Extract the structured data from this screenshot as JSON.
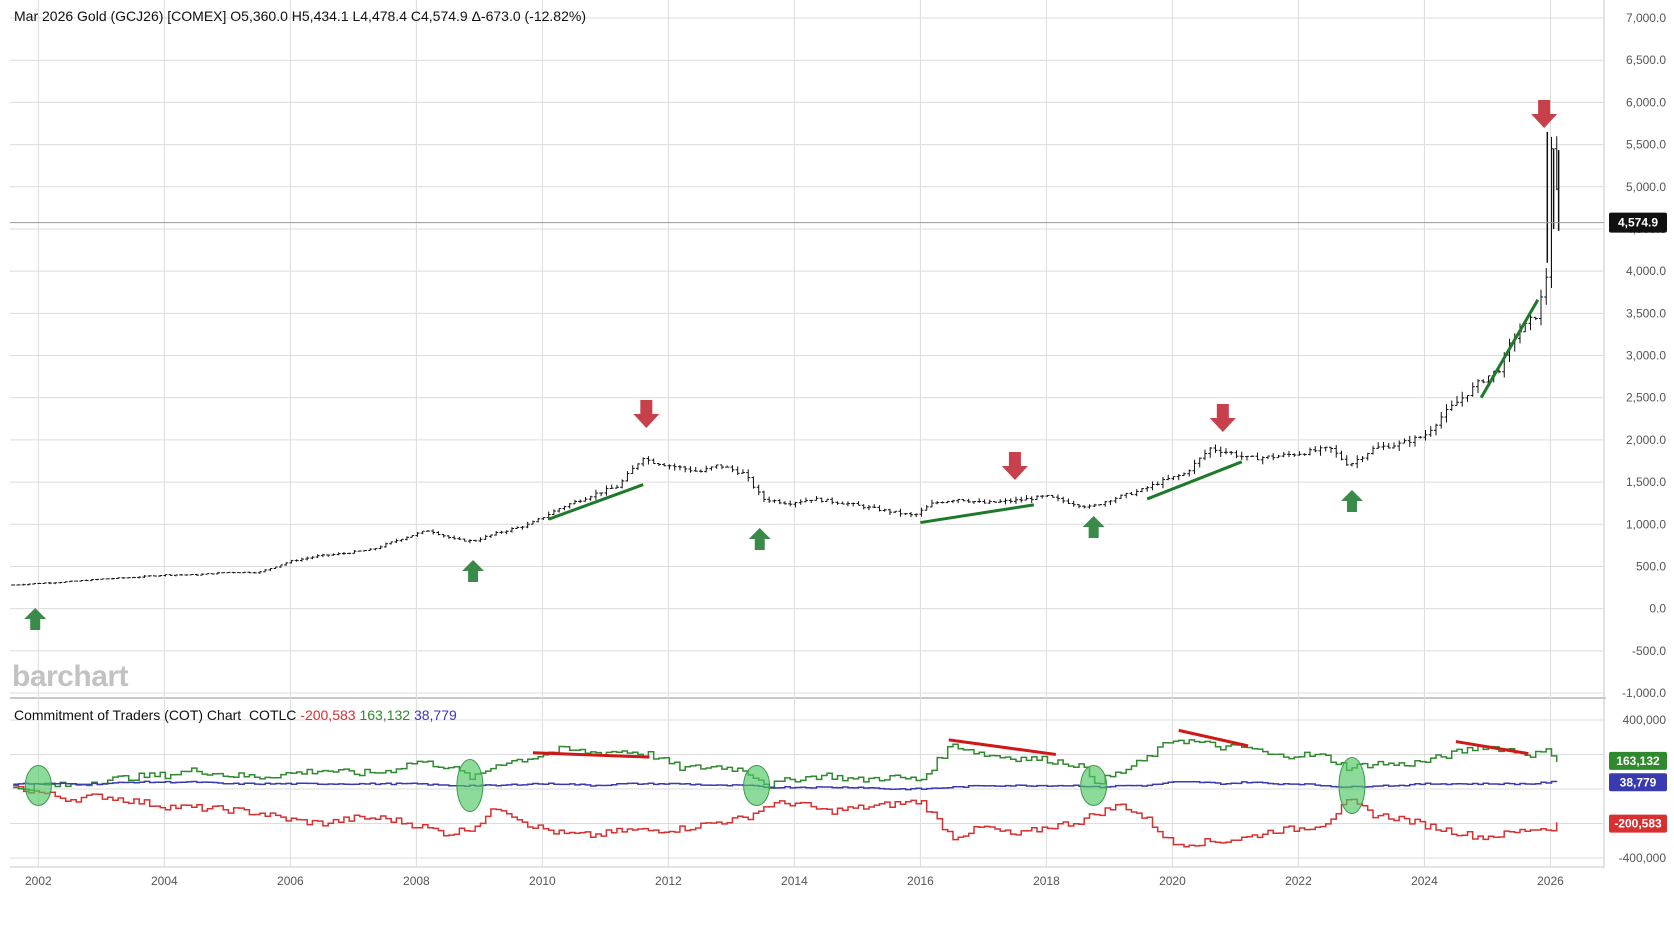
{
  "header": {
    "symbol_line": "Mar 2026 Gold (GCJ26) [COMEX] O5,360.0 H5,434.1 L4,478.4 C4,574.9 Δ-673.0 (-12.82%)"
  },
  "cot_header": {
    "title": "Commitment of Traders (COT) Chart",
    "code": "COTLC",
    "commercials": "-200,583",
    "large_specs": "163,132",
    "small_specs": "38,779"
  },
  "logo": {
    "text": "barchart"
  },
  "colors": {
    "price": "#111111",
    "commercials": "#d83030",
    "large_specs": "#2f8a2f",
    "small_specs": "#3a3ab0",
    "down_arrow": "#c8404a",
    "up_arrow": "#3a8a4a",
    "trend_green": "#1e7a2a",
    "trend_red": "#d01818",
    "grid": "#dcdcdc"
  },
  "chart_data": [
    {
      "type": "bar",
      "panel": "price",
      "title": "Mar 2026 Gold (GCJ26) [COMEX]",
      "ohlc_last": {
        "open": "5,360.0",
        "high": "5,434.1",
        "low": "4,478.4",
        "close": "4,574.9",
        "change": "-673.0",
        "change_pct": "-12.82%"
      },
      "last_price_label": "4,574.9",
      "ylim": [
        -1000,
        7000
      ],
      "y_ticks": [
        "7,000.0",
        "6,500.0",
        "6,000.0",
        "5,500.0",
        "5,000.0",
        "4,500.0",
        "4,000.0",
        "3,500.0",
        "3,000.0",
        "2,500.0",
        "2,000.0",
        "1,500.0",
        "1,000.0",
        "500.0",
        "0.0",
        "-500.0",
        "-1,000.0"
      ],
      "x_ticks": [
        "2002",
        "2004",
        "2006",
        "2008",
        "2010",
        "2012",
        "2014",
        "2016",
        "2018",
        "2020",
        "2022",
        "2024",
        "2026"
      ],
      "x": [
        2001.6,
        2002.0,
        2002.5,
        2003.0,
        2003.5,
        2004.0,
        2004.5,
        2005.0,
        2005.5,
        2006.0,
        2006.4,
        2006.8,
        2007.3,
        2007.8,
        2008.2,
        2008.6,
        2008.9,
        2009.3,
        2009.8,
        2010.3,
        2010.8,
        2011.2,
        2011.6,
        2011.7,
        2012.0,
        2012.5,
        2012.8,
        2013.2,
        2013.5,
        2013.9,
        2014.3,
        2014.8,
        2015.3,
        2015.9,
        2016.2,
        2016.6,
        2017.0,
        2017.5,
        2018.0,
        2018.4,
        2018.7,
        2019.0,
        2019.5,
        2019.8,
        2020.2,
        2020.6,
        2020.9,
        2021.2,
        2021.6,
        2022.1,
        2022.5,
        2022.8,
        2023.2,
        2023.6,
        2024.0,
        2024.3,
        2024.6,
        2024.9,
        2025.2,
        2025.4,
        2025.6,
        2025.8,
        2025.95,
        2026.0,
        2026.15
      ],
      "values": [
        280,
        300,
        320,
        350,
        370,
        400,
        400,
        430,
        430,
        560,
        620,
        650,
        700,
        840,
        930,
        820,
        800,
        900,
        1000,
        1200,
        1350,
        1450,
        1800,
        1750,
        1700,
        1620,
        1700,
        1600,
        1300,
        1250,
        1300,
        1250,
        1180,
        1100,
        1250,
        1300,
        1250,
        1280,
        1330,
        1250,
        1200,
        1290,
        1400,
        1500,
        1600,
        1900,
        1850,
        1780,
        1800,
        1850,
        1900,
        1700,
        1900,
        1950,
        2050,
        2300,
        2500,
        2700,
        2850,
        3200,
        3350,
        3500,
        4000,
        5600,
        4574.9
      ],
      "annotations": {
        "down_arrows_x": [
          2011.65,
          2017.5,
          2020.8,
          2025.9
        ],
        "up_arrows_x": [
          2001.95,
          2008.9,
          2013.45,
          2018.75,
          2022.85
        ],
        "green_trendlines": [
          [
            [
              2010.1,
              1060
            ],
            [
              2011.6,
              1470
            ]
          ],
          [
            [
              2016.0,
              1020
            ],
            [
              2017.8,
              1230
            ]
          ],
          [
            [
              2019.6,
              1300
            ],
            [
              2021.1,
              1740
            ]
          ],
          [
            [
              2024.9,
              2500
            ],
            [
              2025.8,
              3660
            ]
          ]
        ]
      }
    },
    {
      "type": "line",
      "panel": "cot",
      "title": "Commitment of Traders (COT) Chart",
      "ylim": [
        -400000,
        400000
      ],
      "y_ticks": [
        "400,000",
        "",
        "",
        "",
        "-400,000"
      ],
      "x": [
        2001.6,
        2002.0,
        2002.5,
        2003.0,
        2003.5,
        2004.0,
        2004.5,
        2005.0,
        2005.5,
        2006.0,
        2006.5,
        2007.0,
        2007.5,
        2008.0,
        2008.5,
        2008.9,
        2009.3,
        2009.8,
        2010.3,
        2010.8,
        2011.3,
        2011.7,
        2012.2,
        2012.8,
        2013.2,
        2013.6,
        2014.0,
        2014.5,
        2015.0,
        2015.5,
        2016.0,
        2016.5,
        2017.0,
        2017.5,
        2018.0,
        2018.5,
        2018.8,
        2019.2,
        2019.6,
        2020.0,
        2020.4,
        2020.8,
        2021.2,
        2021.6,
        2022.0,
        2022.4,
        2022.8,
        2023.2,
        2023.6,
        2024.0,
        2024.5,
        2024.9,
        2025.3,
        2025.7,
        2026.0,
        2026.1
      ],
      "series": [
        {
          "name": "-200,583",
          "label_value": "-200,583",
          "values": [
            10000,
            -20000,
            -60000,
            -40000,
            -70000,
            -100000,
            -110000,
            -120000,
            -140000,
            -180000,
            -200000,
            -170000,
            -170000,
            -210000,
            -260000,
            -220000,
            -100000,
            -210000,
            -260000,
            -270000,
            -240000,
            -240000,
            -230000,
            -190000,
            -170000,
            -90000,
            -80000,
            -130000,
            -110000,
            -90000,
            -70000,
            -280000,
            -220000,
            -270000,
            -220000,
            -190000,
            -140000,
            -90000,
            -180000,
            -320000,
            -310000,
            -300000,
            -280000,
            -240000,
            -230000,
            -200000,
            -70000,
            -150000,
            -170000,
            -210000,
            -250000,
            -280000,
            -260000,
            -230000,
            -230000,
            -200583
          ]
        },
        {
          "name": "163,132",
          "label_value": "163,132",
          "values": [
            0,
            20000,
            20000,
            50000,
            70000,
            80000,
            110000,
            80000,
            70000,
            90000,
            110000,
            90000,
            100000,
            160000,
            130000,
            60000,
            150000,
            180000,
            230000,
            210000,
            220000,
            200000,
            120000,
            130000,
            110000,
            20000,
            60000,
            80000,
            50000,
            70000,
            50000,
            260000,
            200000,
            180000,
            170000,
            140000,
            40000,
            100000,
            180000,
            290000,
            270000,
            240000,
            240000,
            190000,
            200000,
            190000,
            120000,
            150000,
            140000,
            160000,
            210000,
            250000,
            230000,
            200000,
            220000,
            163132
          ]
        },
        {
          "name": "38,779",
          "label_value": "38,779",
          "values": [
            30000,
            30000,
            30000,
            30000,
            40000,
            40000,
            40000,
            30000,
            30000,
            30000,
            30000,
            30000,
            30000,
            30000,
            20000,
            20000,
            20000,
            30000,
            30000,
            20000,
            30000,
            30000,
            30000,
            20000,
            20000,
            10000,
            10000,
            10000,
            10000,
            0,
            0,
            10000,
            20000,
            20000,
            20000,
            20000,
            10000,
            20000,
            20000,
            40000,
            40000,
            30000,
            40000,
            30000,
            30000,
            20000,
            10000,
            20000,
            20000,
            30000,
            30000,
            30000,
            30000,
            30000,
            40000,
            38779
          ]
        }
      ],
      "annotations": {
        "ellipses_x": [
          2002.0,
          2008.85,
          2013.4,
          2018.75,
          2022.85
        ],
        "red_trendlines": [
          [
            [
              2009.85,
              210000
            ],
            [
              2011.7,
              185000
            ]
          ],
          [
            [
              2016.45,
              285000
            ],
            [
              2018.15,
              200000
            ]
          ],
          [
            [
              2020.1,
              340000
            ],
            [
              2021.2,
              250000
            ]
          ],
          [
            [
              2024.5,
              275000
            ],
            [
              2025.65,
              205000
            ]
          ]
        ]
      }
    }
  ]
}
